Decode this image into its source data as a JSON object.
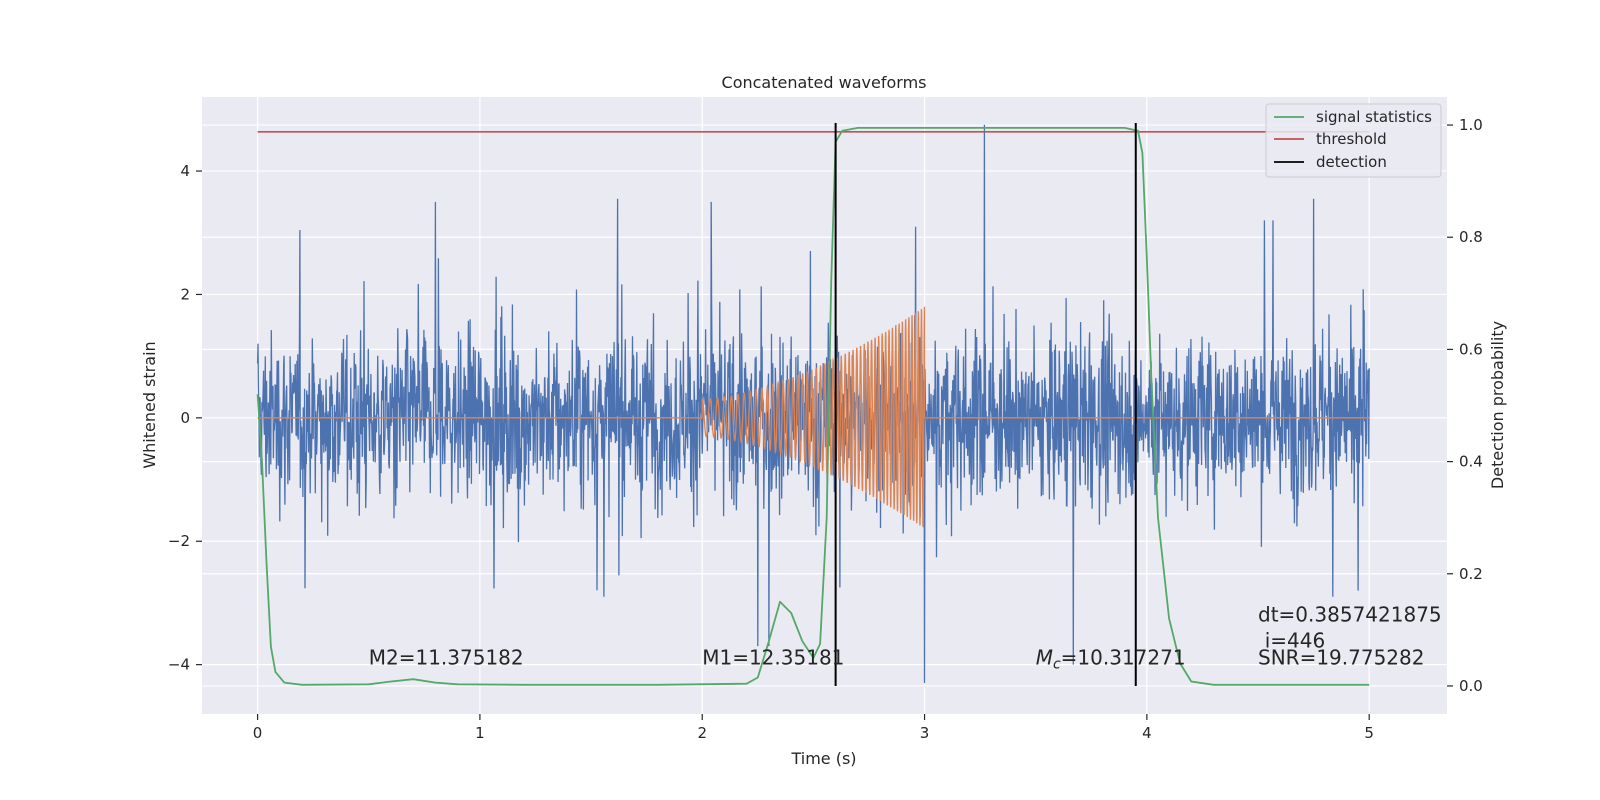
{
  "chart_data": {
    "type": "line",
    "title": "Concatenated waveforms",
    "xlabel": "Time (s)",
    "ylabel": "Whitened strain",
    "y2label": "Detection probability",
    "xlim": [
      -0.25,
      5.35
    ],
    "ylim": [
      -4.8,
      5.2
    ],
    "y2lim": [
      -0.05,
      1.05
    ],
    "xticks": [
      0,
      1,
      2,
      3,
      4,
      5
    ],
    "xtick_labels": [
      "0",
      "1",
      "2",
      "3",
      "4",
      "5"
    ],
    "yticks": [
      -4,
      -2,
      0,
      2,
      4
    ],
    "ytick_labels": [
      "−4",
      "−2",
      "0",
      "2",
      "4"
    ],
    "y2ticks": [
      0.0,
      0.2,
      0.4,
      0.6,
      0.8,
      1.0
    ],
    "y2tick_labels": [
      "0.0",
      "0.2",
      "0.4",
      "0.6",
      "0.8",
      "1.0"
    ],
    "grid": true,
    "legend_position": "top-right",
    "series": [
      {
        "name": "",
        "kind": "noise",
        "axis": "left",
        "color": "#4c72b0",
        "x_range": [
          0,
          5
        ],
        "typical_amplitude": 1.1,
        "peak_values": [
          [
            0.8,
            3.5
          ],
          [
            1.62,
            3.55
          ],
          [
            2.04,
            3.5
          ],
          [
            2.25,
            -3.7
          ],
          [
            2.3,
            -3.7
          ],
          [
            2.62,
            -2.75
          ],
          [
            3.0,
            -4.3
          ],
          [
            3.27,
            4.75
          ],
          [
            3.67,
            -4.0
          ],
          [
            4.75,
            3.55
          ],
          [
            4.95,
            -2.8
          ]
        ]
      },
      {
        "name": "",
        "kind": "chirp",
        "axis": "left",
        "color": "#dd8452",
        "x_range": [
          0,
          5
        ],
        "chirp_start": 2.0,
        "chirp_end": 3.0,
        "amplitude_start": 0.3,
        "amplitude_end": 1.8,
        "cycles": 50
      },
      {
        "name": "signal statistics",
        "axis": "right",
        "color": "#55a868",
        "points": [
          [
            0,
            0.52
          ],
          [
            0.02,
            0.4
          ],
          [
            0.04,
            0.22
          ],
          [
            0.06,
            0.07
          ],
          [
            0.08,
            0.025
          ],
          [
            0.12,
            0.006
          ],
          [
            0.2,
            0.002
          ],
          [
            0.5,
            0.003
          ],
          [
            0.6,
            0.008
          ],
          [
            0.7,
            0.012
          ],
          [
            0.8,
            0.006
          ],
          [
            0.9,
            0.003
          ],
          [
            1.2,
            0.002
          ],
          [
            1.8,
            0.002
          ],
          [
            2.2,
            0.004
          ],
          [
            2.25,
            0.015
          ],
          [
            2.3,
            0.08
          ],
          [
            2.35,
            0.15
          ],
          [
            2.4,
            0.13
          ],
          [
            2.45,
            0.08
          ],
          [
            2.5,
            0.05
          ],
          [
            2.53,
            0.075
          ],
          [
            2.56,
            0.3
          ],
          [
            2.58,
            0.72
          ],
          [
            2.6,
            0.97
          ],
          [
            2.63,
            0.99
          ],
          [
            2.7,
            0.995
          ],
          [
            3.0,
            0.995
          ],
          [
            3.9,
            0.995
          ],
          [
            3.96,
            0.99
          ],
          [
            3.98,
            0.95
          ],
          [
            4.0,
            0.76
          ],
          [
            4.02,
            0.55
          ],
          [
            4.05,
            0.3
          ],
          [
            4.1,
            0.12
          ],
          [
            4.15,
            0.04
          ],
          [
            4.2,
            0.008
          ],
          [
            4.3,
            0.002
          ],
          [
            5,
            0.002
          ]
        ]
      },
      {
        "name": "threshold",
        "axis": "right",
        "color": "#c44e52",
        "points": [
          [
            0,
            0.988
          ],
          [
            5,
            0.988
          ]
        ]
      },
      {
        "name": "detection",
        "axis": "right",
        "color": "#000000",
        "x_values": [
          2.6,
          3.95
        ],
        "y_range": [
          0.0,
          1.0
        ]
      }
    ],
    "annotations": [
      {
        "text": "M2=11.375182",
        "x": 0.5,
        "y": -4.0
      },
      {
        "text": "M1=12.35181",
        "x": 2.0,
        "y": -4.0
      },
      {
        "text_main": "M",
        "text_sub": "c",
        "text_rest": "=10.317271",
        "x": 3.5,
        "y": -4.0
      },
      {
        "text": "SNR=19.775282",
        "x": 4.5,
        "y": -4.0
      },
      {
        "text": "i=446",
        "x": 4.53,
        "y": -3.72
      },
      {
        "text": "dt=0.3857421875",
        "x": 4.5,
        "y": -3.3
      }
    ],
    "colors": {
      "plot_background": "#eaeaf2",
      "grid": "#ffffff",
      "text": "#262626"
    }
  }
}
